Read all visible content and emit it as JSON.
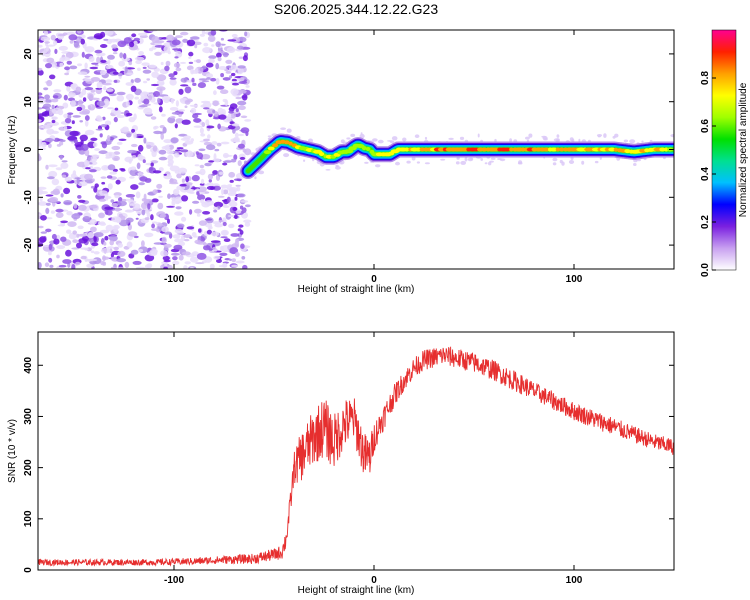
{
  "figure_title": "S206.2025.344.12.22.G23",
  "chart_data": [
    {
      "type": "heatmap",
      "xlabel": "Height of straight line (km)",
      "ylabel": "Frequency (Hz)",
      "xlim": [
        -168,
        150
      ],
      "ylim": [
        -25,
        25
      ],
      "xticks": [
        -100,
        0,
        100
      ],
      "xtick_labels": [
        "-100",
        "0",
        "100"
      ],
      "yticks": [
        -20,
        -10,
        0,
        10,
        20
      ],
      "ytick_labels": [
        "-20",
        "-10",
        "0",
        "10",
        "20"
      ],
      "colorbar": {
        "label": "Normalized spectral amplitude",
        "range": [
          0,
          1
        ],
        "ticks": [
          0.0,
          0.2,
          0.4,
          0.6,
          0.8
        ],
        "tick_labels": [
          "0.0",
          "0.2",
          "0.4",
          "0.6",
          "0.8"
        ],
        "colormap": [
          "#ffffff",
          "#c8a0f0",
          "#7a20e0",
          "#0000ff",
          "#00c0ff",
          "#00e090",
          "#00e000",
          "#a0ff00",
          "#ffff00",
          "#ffa000",
          "#ff2000",
          "#ff0090"
        ]
      },
      "noise_region_x": [
        -168,
        -63
      ],
      "ridge": {
        "x": [
          -63,
          -58,
          -52,
          -47,
          -43,
          -38,
          -33,
          -28,
          -24,
          -20,
          -16,
          -13,
          -10,
          -8,
          -5,
          -2,
          0,
          4,
          8,
          12,
          20,
          40,
          60,
          80,
          100,
          120,
          130,
          140,
          150
        ],
        "freq": [
          -4.5,
          -2.5,
          0,
          1.7,
          1.5,
          0.5,
          0,
          -0.5,
          -1.5,
          -1.5,
          -0.5,
          -0.5,
          0.5,
          1,
          0.3,
          0,
          -1,
          -1,
          -1,
          0,
          0,
          0,
          0,
          0,
          0,
          0,
          -0.5,
          0,
          0
        ],
        "amplitude": [
          0.3,
          0.5,
          0.7,
          0.9,
          0.9,
          0.75,
          0.7,
          0.7,
          0.7,
          0.75,
          0.7,
          0.7,
          0.75,
          0.75,
          0.7,
          0.7,
          0.7,
          0.75,
          0.75,
          0.8,
          0.85,
          0.9,
          0.9,
          0.9,
          0.85,
          0.85,
          0.8,
          0.8,
          0.75
        ]
      }
    },
    {
      "type": "line",
      "xlabel": "Height of straight line (km)",
      "ylabel": "SNR (10 * v/v)",
      "xlim": [
        -168,
        150
      ],
      "ylim": [
        0,
        465
      ],
      "xticks": [
        -100,
        0,
        100
      ],
      "xtick_labels": [
        "-100",
        "0",
        "100"
      ],
      "yticks": [
        0,
        100,
        200,
        300,
        400
      ],
      "ytick_labels": [
        "0",
        "100",
        "200",
        "300",
        "400"
      ],
      "color": "#e62e2e",
      "series": [
        {
          "name": "SNR",
          "x": [
            -168,
            -140,
            -110,
            -90,
            -75,
            -60,
            -50,
            -46,
            -44,
            -42,
            -40,
            -38,
            -35,
            -30,
            -25,
            -20,
            -15,
            -10,
            -5,
            -2,
            0,
            5,
            10,
            15,
            20,
            25,
            30,
            35,
            40,
            45,
            50,
            60,
            70,
            80,
            90,
            100,
            110,
            120,
            130,
            140,
            150
          ],
          "y": [
            15,
            15,
            15,
            17,
            20,
            22,
            30,
            35,
            60,
            120,
            200,
            210,
            230,
            260,
            280,
            250,
            285,
            295,
            225,
            220,
            260,
            300,
            340,
            370,
            395,
            410,
            415,
            420,
            415,
            410,
            405,
            390,
            370,
            350,
            330,
            310,
            295,
            280,
            265,
            250,
            240
          ],
          "noise_amp": [
            6,
            6,
            6,
            7,
            8,
            10,
            12,
            14,
            20,
            25,
            30,
            45,
            50,
            55,
            60,
            55,
            50,
            45,
            45,
            40,
            30,
            25,
            22,
            20,
            20,
            20,
            20,
            20,
            20,
            20,
            20,
            20,
            20,
            18,
            18,
            18,
            18,
            18,
            16,
            16,
            16
          ]
        }
      ]
    }
  ]
}
